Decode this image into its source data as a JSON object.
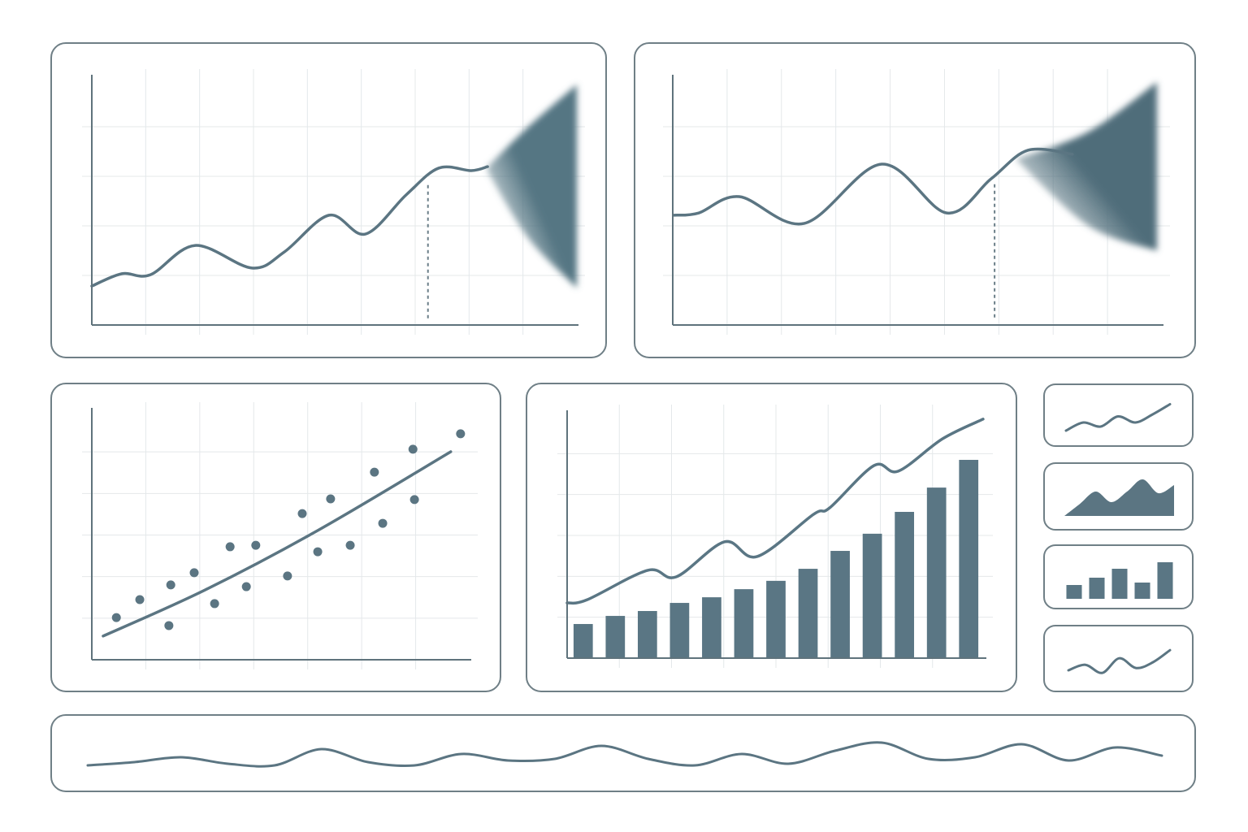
{
  "chart_data": [
    {
      "type": "line",
      "color": "#5b7582",
      "band_color": "#557683",
      "grid": true,
      "xlim": [
        0,
        100
      ],
      "ylim": [
        0,
        100
      ],
      "x": [
        0,
        6.2,
        12.1,
        21.3,
        33,
        39.7,
        48.9,
        56.4,
        64.8,
        71.5,
        78.2,
        81.6
      ],
      "values": [
        15.7,
        20.7,
        20.3,
        32.1,
        23,
        29.5,
        44.3,
        36.7,
        52.5,
        63.3,
        62.3,
        63.9
      ],
      "forecast_x": 69.3,
      "band": {
        "x": [
          81.6,
          90,
          100
        ],
        "upper": [
          63.9,
          80,
          97
        ],
        "lower": [
          62,
          35,
          15
        ]
      }
    },
    {
      "type": "line",
      "color": "#5b7582",
      "band_color": "#4f6d7a",
      "grid": true,
      "xlim": [
        0,
        100
      ],
      "ylim": [
        0,
        100
      ],
      "x": [
        0.3,
        5.3,
        13.6,
        26.9,
        42.7,
        56,
        65.1,
        72.6,
        81.7
      ],
      "values": [
        44.3,
        45.2,
        51.8,
        41,
        64.9,
        45.2,
        59,
        70.5,
        68.9
      ],
      "forecast_x": 65.8,
      "band": {
        "x": [
          70.1,
          85,
          99
        ],
        "upper": [
          67,
          78,
          98
        ],
        "lower": [
          67,
          40,
          30
        ]
      }
    },
    {
      "type": "scatter",
      "color": "#5b7582",
      "grid": true,
      "xlim": [
        0,
        100
      ],
      "ylim": [
        0,
        100
      ],
      "x": [
        6.5,
        12.7,
        20.4,
        20.9,
        27.1,
        32.5,
        36.6,
        40.9,
        43.4,
        51.8,
        55.7,
        59.8,
        63.2,
        68.4,
        74.8,
        77,
        85,
        85.4,
        97.6
      ],
      "values": [
        16.9,
        24.1,
        13.7,
        30,
        34.9,
        22.5,
        45.3,
        29.3,
        45.9,
        33.6,
        58.6,
        43.3,
        64.5,
        45.9,
        75.2,
        54.7,
        84.4,
        64.2,
        90.6
      ],
      "trend": {
        "x": [
          3,
          30,
          60,
          95
        ],
        "values": [
          9.5,
          28,
          52,
          83.4
        ]
      }
    },
    {
      "type": "bar",
      "color": "#5a7684",
      "grid": true,
      "xlim": [
        0,
        100
      ],
      "ylim": [
        0,
        100
      ],
      "categories": [
        null,
        null,
        null,
        null,
        null,
        null,
        null,
        null,
        null,
        null,
        null,
        null,
        null
      ],
      "values": [
        13.9,
        17.2,
        19.2,
        22.5,
        24.8,
        28.1,
        31.5,
        36.4,
        43.7,
        50.7,
        59.6,
        69.5,
        80.8
      ],
      "line": {
        "x": [
          0,
          4.8,
          19.3,
          26.1,
          37.7,
          45.5,
          59,
          62.9,
          73.5,
          79.3,
          89.9,
          99.6
        ],
        "values": [
          22.5,
          23.8,
          35.8,
          33.1,
          47.4,
          41.4,
          58.6,
          61.3,
          78.5,
          76.2,
          89.4,
          97.4
        ]
      }
    },
    {
      "type": "line",
      "color": "#5b7582",
      "ylim": [
        0,
        100
      ],
      "values": [
        20,
        40,
        30,
        55,
        40,
        60,
        85
      ]
    },
    {
      "type": "area",
      "color": "#5b7582",
      "ylim": [
        0,
        100
      ],
      "values": [
        0,
        30,
        60,
        34,
        60,
        90,
        56,
        76
      ]
    },
    {
      "type": "bar",
      "color": "#5a7684",
      "ylim": [
        0,
        100
      ],
      "values": [
        34,
        52,
        74,
        40,
        90
      ]
    },
    {
      "type": "line",
      "color": "#5b7582",
      "ylim": [
        0,
        100
      ],
      "values": [
        25,
        42,
        17,
        62,
        32,
        50,
        87
      ]
    },
    {
      "type": "line",
      "color": "#5b7582",
      "ylim": [
        0,
        100
      ],
      "values": [
        20,
        30,
        45,
        25,
        20,
        70,
        30,
        20,
        55,
        35,
        40,
        80,
        40,
        20,
        55,
        25,
        65,
        90,
        40,
        45,
        85,
        35,
        75,
        50
      ]
    }
  ]
}
